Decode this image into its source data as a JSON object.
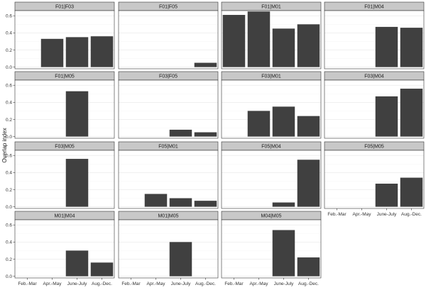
{
  "chart_data": {
    "type": "bar",
    "title": "",
    "xlabel": "",
    "ylabel": "Overlap index",
    "ylim": [
      -0.02,
      0.66
    ],
    "yticks": [
      0.0,
      0.2,
      0.4,
      0.6
    ],
    "ytick_labels": [
      "0.0",
      "0.2",
      "0.4",
      "0.6"
    ],
    "categories": [
      "Feb.-Mar",
      "Apr.-May",
      "June-July",
      "Aug.-Dec."
    ],
    "grid": true,
    "bar_color": "#404040",
    "strip_color": "#c8c8c8",
    "panels": [
      {
        "label": "F01|F03",
        "values": [
          null,
          0.33,
          0.35,
          0.36
        ]
      },
      {
        "label": "F01|F05",
        "values": [
          null,
          null,
          null,
          0.05
        ]
      },
      {
        "label": "F01|M01",
        "values": [
          0.61,
          0.65,
          0.45,
          0.5
        ]
      },
      {
        "label": "F01|M04",
        "values": [
          null,
          null,
          0.47,
          0.46
        ]
      },
      {
        "label": "F01|M05",
        "values": [
          null,
          null,
          0.53,
          null
        ]
      },
      {
        "label": "F03|F05",
        "values": [
          null,
          null,
          0.08,
          0.05
        ]
      },
      {
        "label": "F03|M01",
        "values": [
          null,
          0.3,
          0.35,
          0.24
        ]
      },
      {
        "label": "F03|M04",
        "values": [
          null,
          null,
          0.47,
          0.56
        ]
      },
      {
        "label": "F03|M05",
        "values": [
          null,
          null,
          0.56,
          null
        ]
      },
      {
        "label": "F05|M01",
        "values": [
          null,
          0.15,
          0.1,
          0.07
        ]
      },
      {
        "label": "F05|M04",
        "values": [
          null,
          null,
          0.05,
          0.55
        ]
      },
      {
        "label": "F05|M05",
        "values": [
          null,
          null,
          0.27,
          0.34
        ]
      },
      {
        "label": "M01|M04",
        "values": [
          null,
          null,
          0.3,
          0.16
        ]
      },
      {
        "label": "M01|M05",
        "values": [
          null,
          null,
          0.4,
          null
        ]
      },
      {
        "label": "M04|M05",
        "values": [
          null,
          null,
          0.54,
          0.22
        ]
      }
    ]
  }
}
